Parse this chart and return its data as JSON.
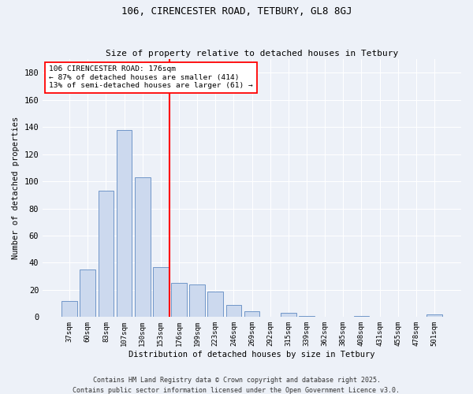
{
  "title": "106, CIRENCESTER ROAD, TETBURY, GL8 8GJ",
  "subtitle": "Size of property relative to detached houses in Tetbury",
  "xlabel": "Distribution of detached houses by size in Tetbury",
  "ylabel": "Number of detached properties",
  "bar_labels": [
    "37sqm",
    "60sqm",
    "83sqm",
    "107sqm",
    "130sqm",
    "153sqm",
    "176sqm",
    "199sqm",
    "223sqm",
    "246sqm",
    "269sqm",
    "292sqm",
    "315sqm",
    "339sqm",
    "362sqm",
    "385sqm",
    "408sqm",
    "431sqm",
    "455sqm",
    "478sqm",
    "501sqm"
  ],
  "bar_values": [
    12,
    35,
    93,
    138,
    103,
    37,
    25,
    24,
    19,
    9,
    4,
    0,
    3,
    1,
    0,
    0,
    1,
    0,
    0,
    0,
    2
  ],
  "bar_color": "#ccd9ee",
  "bar_edge_color": "#7096c8",
  "vline_color": "red",
  "vline_index": 6,
  "ylim": [
    0,
    190
  ],
  "yticks": [
    0,
    20,
    40,
    60,
    80,
    100,
    120,
    140,
    160,
    180
  ],
  "annotation_text": "106 CIRENCESTER ROAD: 176sqm\n← 87% of detached houses are smaller (414)\n13% of semi-detached houses are larger (61) →",
  "annotation_box_color": "white",
  "annotation_box_edge": "red",
  "footer": "Contains HM Land Registry data © Crown copyright and database right 2025.\nContains public sector information licensed under the Open Government Licence v3.0.",
  "bg_color": "#edf1f8",
  "grid_color": "white"
}
